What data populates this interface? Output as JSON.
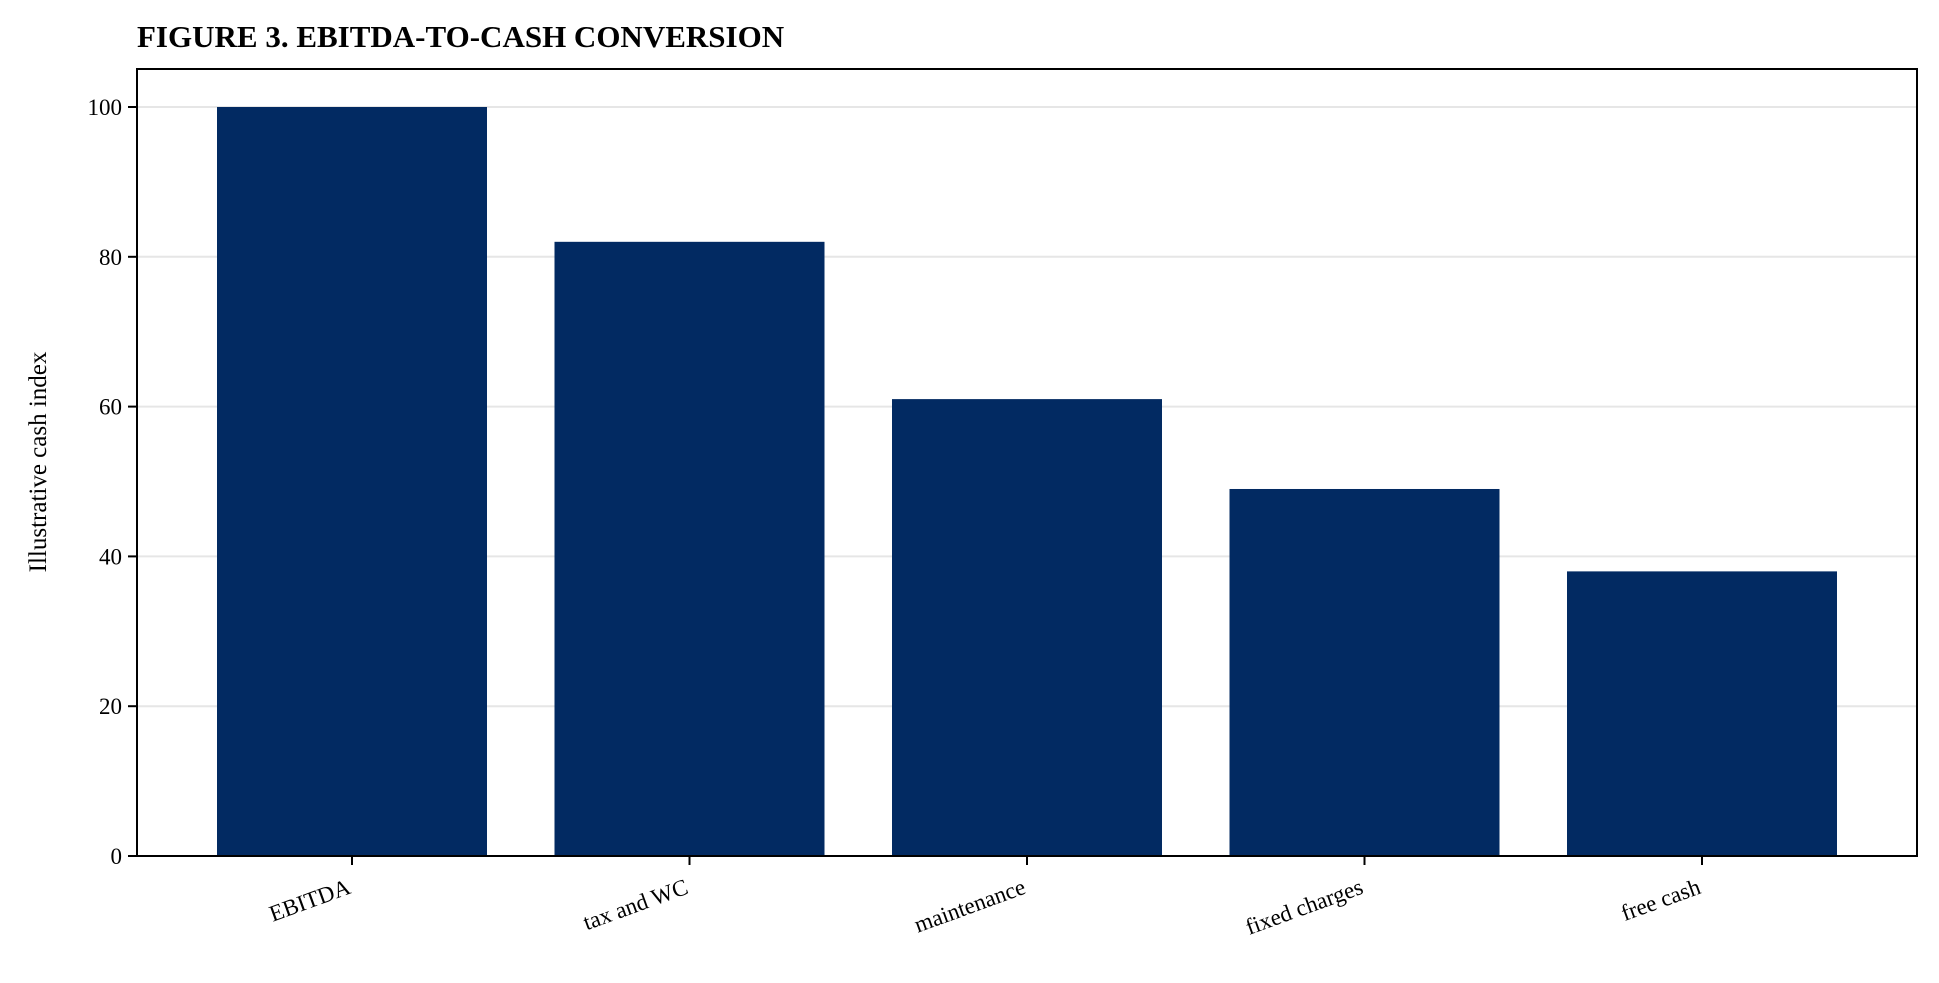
{
  "chart_data": {
    "type": "bar",
    "title": "FIGURE 3. EBITDA-TO-CASH CONVERSION",
    "xlabel": "",
    "ylabel": "Illustrative cash index",
    "categories": [
      "EBITDA",
      "tax and WC",
      "maintenance",
      "fixed charges",
      "free cash"
    ],
    "values": [
      100,
      82,
      61,
      49,
      38
    ],
    "ylim": [
      0,
      105
    ],
    "yticks": [
      0,
      20,
      40,
      60,
      80,
      100
    ],
    "grid": "horizontal",
    "legend": "none",
    "bar_color": "#022a62",
    "grid_color": "#e6e6e6"
  }
}
